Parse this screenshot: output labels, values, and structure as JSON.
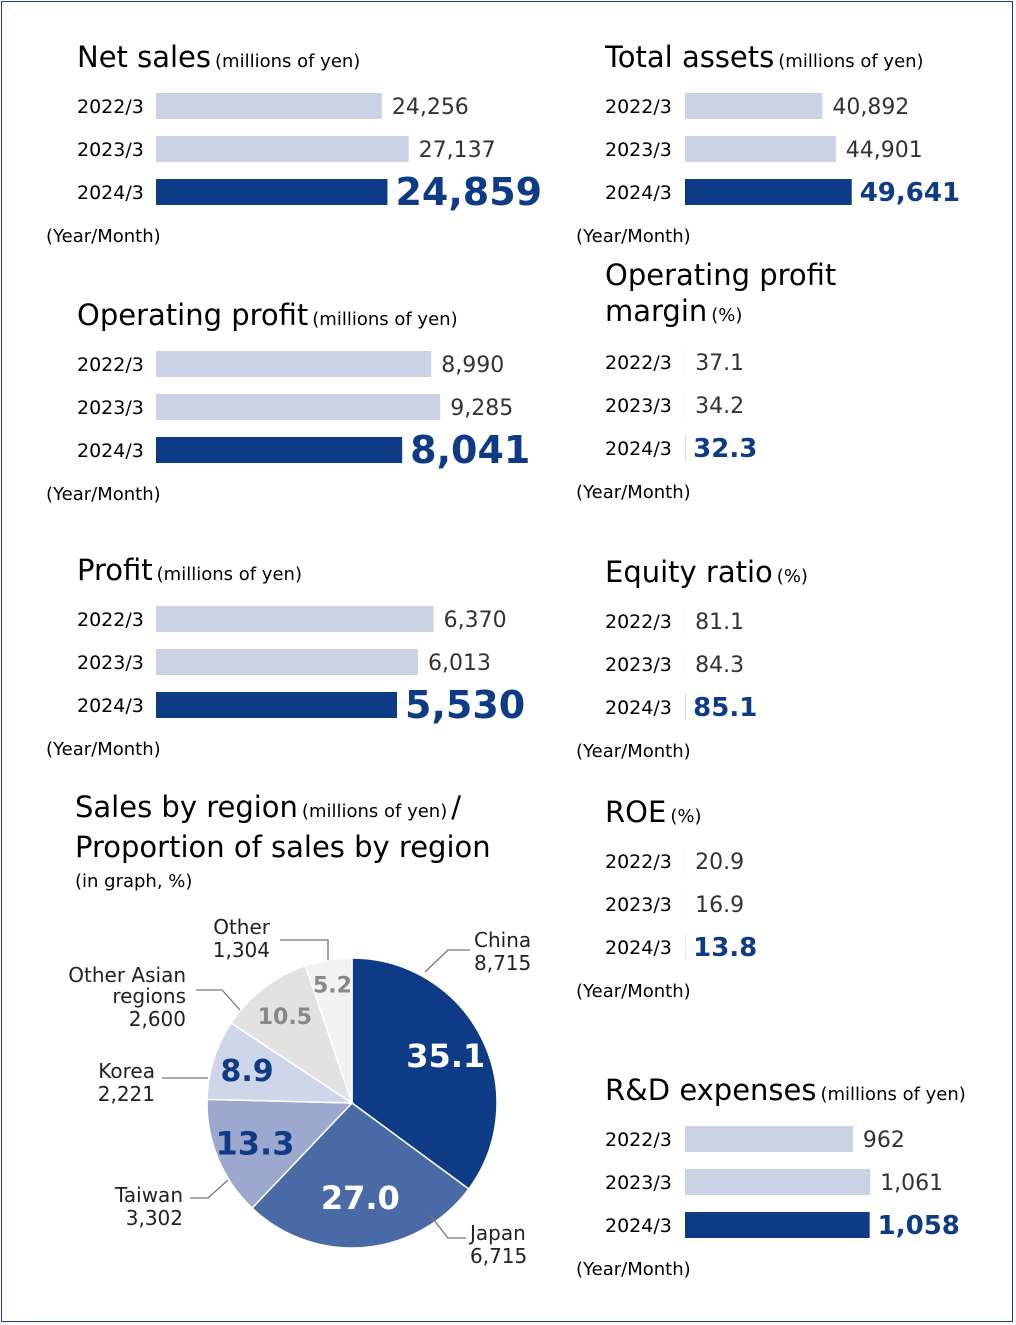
{
  "colors": {
    "bar_light": "#ccd2e5",
    "bar_dark": "#0d3b85",
    "value_highlight": "#0d3b85",
    "pie": [
      "#0d3b85",
      "#4a6aa5",
      "#9da8cf",
      "#cfd6ea",
      "#e2e2e2",
      "#f1f2f1"
    ]
  },
  "chart_data": [
    {
      "type": "bar",
      "title": "Net sales",
      "unit": "(millions of yen)",
      "categories": [
        "2022/3",
        "2023/3",
        "2024/3"
      ],
      "values": [
        24256,
        27137,
        24859
      ],
      "value_labels": [
        "24,256",
        "27,137",
        "24,859"
      ],
      "xlabel": "(Year/Month)",
      "orientation": "horizontal"
    },
    {
      "type": "bar",
      "title": "Operating profit",
      "unit": "(millions of yen)",
      "categories": [
        "2022/3",
        "2023/3",
        "2024/3"
      ],
      "values": [
        8990,
        9285,
        8041
      ],
      "value_labels": [
        "8,990",
        "9,285",
        "8,041"
      ],
      "xlabel": "(Year/Month)",
      "orientation": "horizontal"
    },
    {
      "type": "bar",
      "title": "Profit",
      "unit": "(millions of yen)",
      "categories": [
        "2022/3",
        "2023/3",
        "2024/3"
      ],
      "values": [
        6370,
        6013,
        5530
      ],
      "value_labels": [
        "6,370",
        "6,013",
        "5,530"
      ],
      "xlabel": "(Year/Month)",
      "orientation": "horizontal"
    },
    {
      "type": "bar",
      "title": "Total assets",
      "unit": "(millions of yen)",
      "categories": [
        "2022/3",
        "2023/3",
        "2024/3"
      ],
      "values": [
        40892,
        44901,
        49641
      ],
      "value_labels": [
        "40,892",
        "44,901",
        "49,641"
      ],
      "xlabel": "(Year/Month)",
      "orientation": "horizontal"
    },
    {
      "type": "bar",
      "title": "Operating profit margin",
      "title_lines": [
        "Operating profit",
        "margin"
      ],
      "unit": "(%)",
      "categories": [
        "2022/3",
        "2023/3",
        "2024/3"
      ],
      "values": [
        37.1,
        34.2,
        32.3
      ],
      "value_labels": [
        "37.1",
        "34.2",
        "32.3"
      ],
      "xlabel": "(Year/Month)",
      "orientation": "horizontal"
    },
    {
      "type": "bar",
      "title": "Equity ratio",
      "unit": "(%)",
      "categories": [
        "2022/3",
        "2023/3",
        "2024/3"
      ],
      "values": [
        81.1,
        84.3,
        85.1
      ],
      "value_labels": [
        "81.1",
        "84.3",
        "85.1"
      ],
      "xlabel": "(Year/Month)",
      "orientation": "horizontal"
    },
    {
      "type": "bar",
      "title": "ROE",
      "unit": "(%)",
      "categories": [
        "2022/3",
        "2023/3",
        "2024/3"
      ],
      "values": [
        20.9,
        16.9,
        13.8
      ],
      "value_labels": [
        "20.9",
        "16.9",
        "13.8"
      ],
      "xlabel": "(Year/Month)",
      "orientation": "horizontal"
    },
    {
      "type": "bar",
      "title": "R&D expenses",
      "unit": "(millions of yen)",
      "categories": [
        "2022/3",
        "2023/3",
        "2024/3"
      ],
      "values": [
        962,
        1061,
        1058
      ],
      "value_labels": [
        "962",
        "1,061",
        "1,058"
      ],
      "xlabel": "(Year/Month)",
      "orientation": "horizontal"
    },
    {
      "type": "pie",
      "title": "Sales by region",
      "title_unit": "(millions of yen)",
      "title_sep": "/",
      "subtitle": "Proportion of sales by region",
      "subtitle_unit": "(in graph, %)",
      "slices": [
        {
          "name": "China",
          "value": 8715,
          "value_label": "8,715",
          "percent": 35.1
        },
        {
          "name": "Japan",
          "value": 6715,
          "value_label": "6,715",
          "percent": 27.0
        },
        {
          "name": "Taiwan",
          "value": 3302,
          "value_label": "3,302",
          "percent": 13.3
        },
        {
          "name": "Korea",
          "value": 2221,
          "value_label": "2,221",
          "percent": 8.9
        },
        {
          "name": "Other Asian regions",
          "name_lines": [
            "Other Asian",
            "regions"
          ],
          "value": 2600,
          "value_label": "2,600",
          "percent": 10.5
        },
        {
          "name": "Other",
          "value": 1304,
          "value_label": "1,304",
          "percent": 5.2
        }
      ]
    }
  ]
}
